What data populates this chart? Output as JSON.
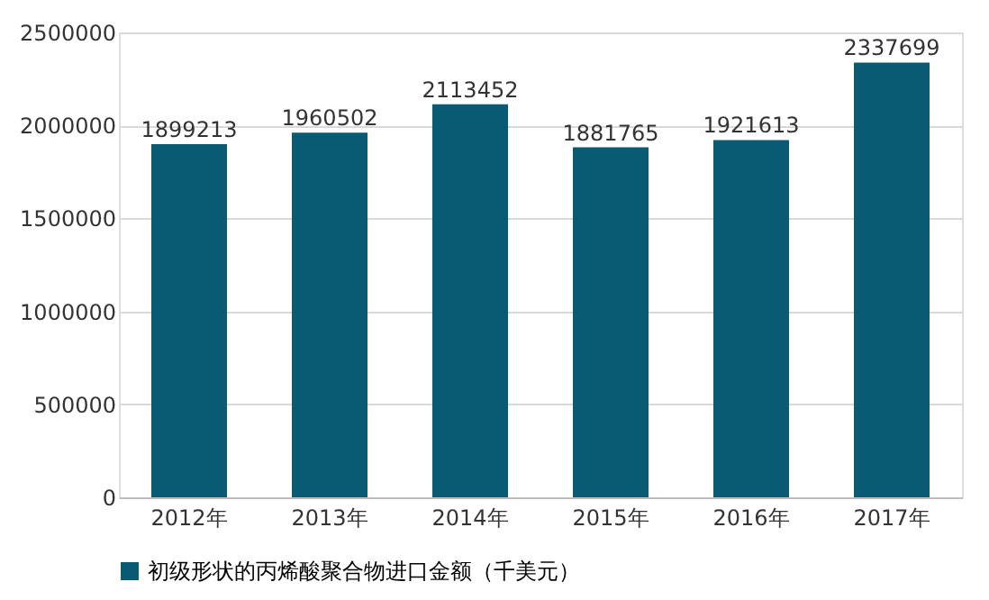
{
  "chart_data": {
    "type": "bar",
    "categories": [
      "2012年",
      "2013年",
      "2014年",
      "2015年",
      "2016年",
      "2017年"
    ],
    "series": [
      {
        "name": "初级形状的丙烯酸聚合物进口金额（千美元）",
        "color": "#0b5a73",
        "values": [
          1899213,
          1960502,
          2113452,
          1881765,
          1921613,
          2337699
        ]
      }
    ],
    "ylim": [
      0,
      2500000
    ],
    "yticks": [
      0,
      500000,
      1000000,
      1500000,
      2000000,
      2500000
    ],
    "grid": "y",
    "legend": "bottom",
    "data_labels": true
  }
}
